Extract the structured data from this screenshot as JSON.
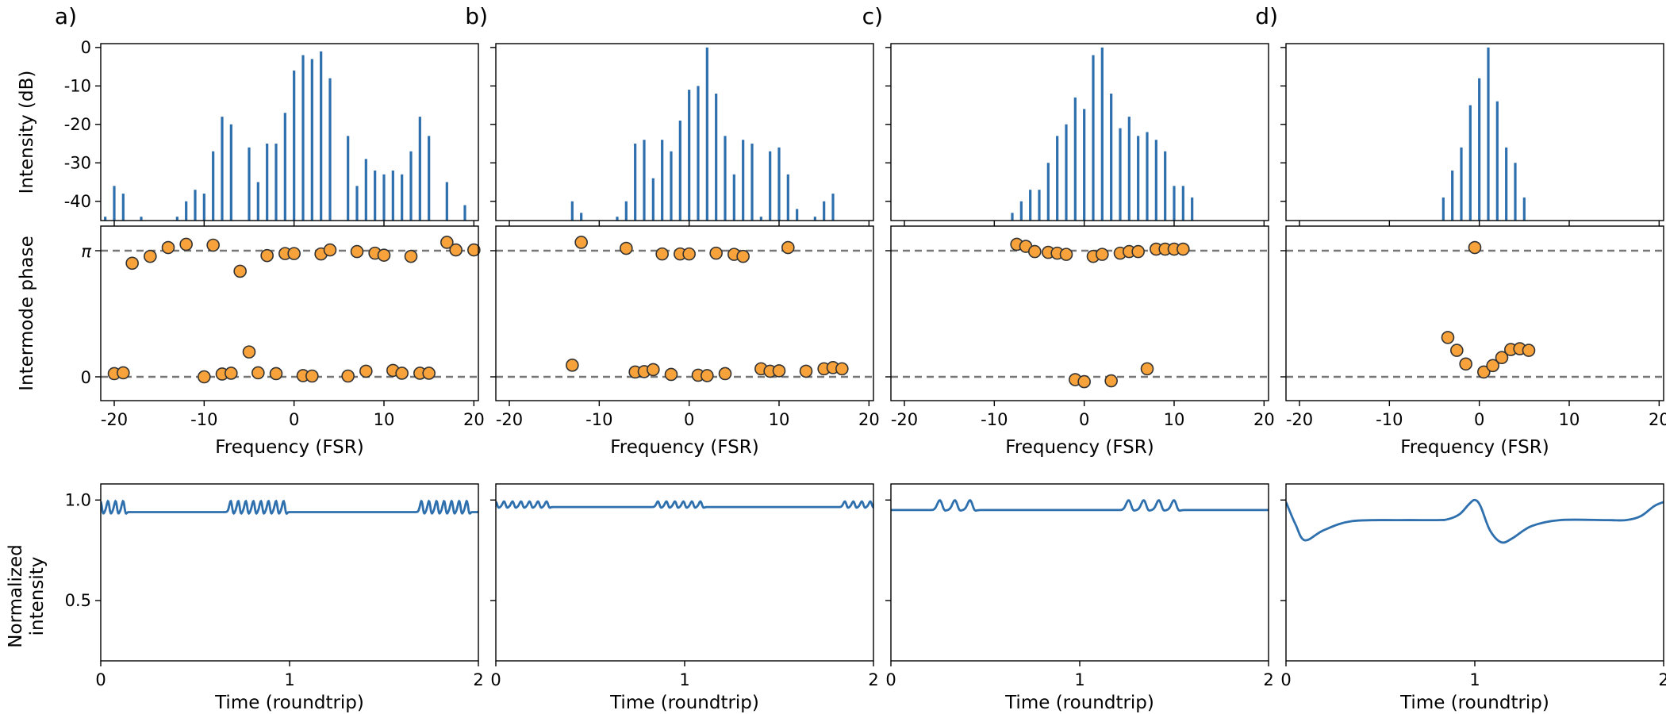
{
  "colors": {
    "bar": "#2e6fae",
    "dot": "#f7a23a",
    "dot_edge": "#333333",
    "ref_line": "#777777"
  },
  "chart_data": [
    {
      "label": "a)",
      "type": "bar",
      "spectrum": {
        "ylabel": "Intensity (dB)",
        "ylim": [
          -45,
          1
        ],
        "yticks": [
          "0",
          "-10",
          "-20",
          "-30",
          "-40"
        ],
        "xlim": [
          -21.5,
          20.5
        ],
        "x": [
          -21,
          -20,
          -19,
          -17,
          -15,
          -13,
          -12,
          -11,
          -10,
          -9,
          -8,
          -7,
          -6,
          -5,
          -4,
          -3,
          -2,
          -1,
          0,
          1,
          2,
          3,
          4,
          6,
          7,
          8,
          9,
          10,
          11,
          12,
          13,
          14,
          15,
          17,
          19
        ],
        "values": [
          -44,
          -36,
          -38,
          -44,
          -45,
          -44,
          -40,
          -37,
          -38,
          -27,
          -18,
          -20,
          -45,
          -26,
          -35,
          -25,
          -25,
          -17,
          -6,
          -2,
          -3,
          -1,
          -8,
          -23,
          -36,
          -29,
          -32,
          -33,
          -32,
          -33,
          -27,
          -18,
          -23,
          -35,
          -41
        ]
      },
      "phase": {
        "ylabel": "Intermode phase",
        "yticks": [
          "0",
          "π"
        ],
        "xlabel": "Frequency (FSR)",
        "xlim": [
          -21.5,
          20.5
        ],
        "xticks": [
          "-20",
          "-10",
          "0",
          "10",
          "20"
        ],
        "x": [
          -20,
          -19,
          -18,
          -16,
          -14,
          -12,
          -10,
          -9,
          -8,
          -7,
          -6,
          -5,
          -4,
          -3,
          -2,
          -1,
          0,
          1,
          2,
          3,
          4,
          6,
          7,
          8,
          9,
          10,
          11,
          12,
          13,
          14,
          15,
          17,
          18,
          20
        ],
        "y": [
          0.08,
          0.1,
          2.83,
          3.0,
          3.22,
          3.3,
          0.0,
          3.28,
          0.07,
          0.09,
          2.63,
          0.62,
          0.1,
          3.02,
          0.08,
          3.07,
          3.07,
          0.03,
          0.02,
          3.06,
          3.16,
          0.02,
          3.12,
          0.14,
          3.08,
          3.03,
          0.16,
          0.09,
          3.0,
          0.09,
          0.09,
          3.35,
          3.16,
          3.16
        ]
      },
      "time": {
        "ylabel": "Normalized intensity",
        "ylim": [
          0.2,
          1.08
        ],
        "yticks": [
          "1.0",
          "0.5"
        ],
        "xlabel": "Time (roundtrip)",
        "xlim": [
          0,
          2
        ],
        "xticks": [
          "0",
          "1",
          "2"
        ],
        "base": 0.94,
        "amp": 0.06,
        "width": 0.012,
        "bursts": [
          {
            "start": 0.0,
            "count": 4,
            "spacing": 0.04
          },
          {
            "start": 0.69,
            "count": 8,
            "spacing": 0.04
          },
          {
            "start": 1.7,
            "count": 7,
            "spacing": 0.04
          }
        ]
      }
    },
    {
      "label": "b)",
      "type": "bar",
      "spectrum": {
        "ylabel": "",
        "ylim": [
          -45,
          1
        ],
        "yticks": [],
        "xlim": [
          -21.5,
          20.5
        ],
        "x": [
          -13,
          -12,
          -8,
          -7,
          -6,
          -5,
          -4,
          -3,
          -2,
          -1,
          0,
          1,
          2,
          3,
          4,
          5,
          6,
          7,
          8,
          9,
          10,
          11,
          12,
          13,
          14,
          15,
          16
        ],
        "values": [
          -40,
          -43,
          -44,
          -40,
          -25,
          -24,
          -34,
          -24,
          -27,
          -19,
          -11,
          -10,
          0,
          -12,
          -23,
          -33,
          -24,
          -25,
          -44,
          -27,
          -26,
          -33,
          -42,
          -45,
          -44,
          -40,
          -38
        ]
      },
      "phase": {
        "ylabel": "",
        "yticks": [],
        "xlabel": "Frequency (FSR)",
        "xlim": [
          -21.5,
          20.5
        ],
        "xticks": [
          "-20",
          "-10",
          "0",
          "10",
          "20"
        ],
        "x": [
          -13,
          -12,
          -7,
          -6,
          -5,
          -4,
          -3,
          -2,
          -1,
          0,
          1,
          2,
          3,
          4,
          5,
          6,
          8,
          9,
          10,
          11,
          13,
          15,
          16,
          17
        ],
        "y": [
          0.29,
          3.35,
          3.2,
          0.12,
          0.13,
          0.18,
          3.06,
          0.06,
          3.06,
          3.06,
          0.04,
          0.03,
          3.08,
          0.08,
          3.05,
          3.0,
          0.2,
          0.14,
          0.15,
          3.22,
          0.14,
          0.2,
          0.23,
          0.2
        ]
      },
      "time": {
        "ylabel": "",
        "ylim": [
          0.2,
          1.08
        ],
        "yticks": [],
        "xlabel": "Time (roundtrip)",
        "xlim": [
          0,
          2
        ],
        "xticks": [
          "0",
          "1",
          "2"
        ],
        "base": 0.965,
        "amp": 0.03,
        "width": 0.013,
        "bursts": [
          {
            "start": 0.0,
            "count": 7,
            "spacing": 0.045
          },
          {
            "start": 0.86,
            "count": 6,
            "spacing": 0.045
          },
          {
            "start": 1.85,
            "count": 4,
            "spacing": 0.045
          }
        ]
      }
    },
    {
      "label": "c)",
      "type": "bar",
      "spectrum": {
        "ylabel": "",
        "ylim": [
          -45,
          1
        ],
        "yticks": [],
        "xlim": [
          -21.5,
          20.5
        ],
        "x": [
          -8,
          -7,
          -6,
          -5,
          -4,
          -3,
          -2,
          -1,
          0,
          1,
          2,
          3,
          4,
          5,
          6,
          7,
          8,
          9,
          10,
          11,
          12
        ],
        "values": [
          -43,
          -40,
          -37,
          -37,
          -30,
          -23,
          -20,
          -13,
          -16,
          -2,
          0,
          -12,
          -21,
          -18,
          -23,
          -22,
          -24,
          -27,
          -36,
          -36,
          -39
        ]
      },
      "phase": {
        "ylabel": "",
        "yticks": [],
        "xlabel": "Frequency (FSR)",
        "xlim": [
          -21.5,
          20.5
        ],
        "xticks": [
          "-20",
          "-10",
          "0",
          "10",
          "20"
        ],
        "x": [
          -7.5,
          -6.5,
          -5.5,
          -4,
          -3,
          -2,
          -1,
          0,
          1,
          2,
          3,
          4,
          5,
          6,
          7,
          8,
          9,
          10,
          11
        ],
        "y": [
          3.3,
          3.25,
          3.12,
          3.1,
          3.08,
          3.05,
          -0.07,
          -0.12,
          3.0,
          3.05,
          -0.1,
          3.08,
          3.12,
          3.12,
          0.2,
          3.18,
          3.18,
          3.18,
          3.18
        ]
      },
      "time": {
        "ylabel": "",
        "ylim": [
          0.2,
          1.08
        ],
        "yticks": [],
        "xlabel": "Time (roundtrip)",
        "xlim": [
          0,
          2
        ],
        "xticks": [
          "0",
          "1",
          "2"
        ],
        "base": 0.95,
        "amp": 0.05,
        "width": 0.02,
        "bursts": [
          {
            "start": 0.26,
            "count": 3,
            "spacing": 0.08
          },
          {
            "start": 1.26,
            "count": 4,
            "spacing": 0.08
          }
        ]
      }
    },
    {
      "label": "d)",
      "type": "bar",
      "spectrum": {
        "ylabel": "",
        "ylim": [
          -45,
          1
        ],
        "yticks": [],
        "xlim": [
          -21.5,
          20.5
        ],
        "x": [
          -4,
          -3,
          -2,
          -1,
          0,
          1,
          2,
          3,
          4,
          5
        ],
        "values": [
          -39,
          -32,
          -26,
          -15,
          -8,
          0,
          -14,
          -26,
          -30,
          -39
        ]
      },
      "phase": {
        "ylabel": "",
        "yticks": [],
        "xlabel": "Frequency (FSR)",
        "xlim": [
          -21.5,
          20.5
        ],
        "xticks": [
          "-20",
          "-10",
          "0",
          "10",
          "20"
        ],
        "x": [
          -0.5,
          -3.5,
          -2.5,
          -1.5,
          0.5,
          1.5,
          2.5,
          3.5,
          4.5,
          5.5
        ],
        "y": [
          3.22,
          0.98,
          0.66,
          0.32,
          0.12,
          0.28,
          0.48,
          0.68,
          0.7,
          0.66
        ]
      },
      "time": {
        "ylabel": "",
        "ylim": [
          0.2,
          1.08
        ],
        "yticks": [],
        "xlabel": "Time (roundtrip)",
        "xlim": [
          0,
          2
        ],
        "xticks": [
          "0",
          "1",
          "2"
        ],
        "curve_t": [
          0,
          0.05,
          0.1,
          0.2,
          0.35,
          0.6,
          0.8,
          0.86,
          0.92,
          0.97,
          1.0,
          1.03,
          1.08,
          1.14,
          1.2,
          1.3,
          1.45,
          1.7,
          1.8,
          1.88,
          1.95,
          2.0
        ],
        "curve_y": [
          0.99,
          0.88,
          0.8,
          0.85,
          0.895,
          0.9,
          0.9,
          0.905,
          0.93,
          0.98,
          1.0,
          0.97,
          0.85,
          0.79,
          0.81,
          0.87,
          0.9,
          0.9,
          0.9,
          0.92,
          0.97,
          0.99
        ]
      }
    }
  ]
}
